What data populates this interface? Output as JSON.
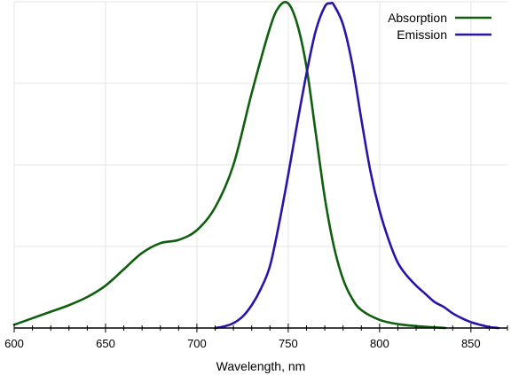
{
  "chart_data": {
    "type": "line",
    "title": "",
    "xlabel": "Wavelength, nm",
    "ylabel": "",
    "xlim": [
      600,
      870
    ],
    "ylim": [
      0,
      1.0
    ],
    "x_ticks": [
      600,
      650,
      700,
      750,
      800,
      850
    ],
    "x_tick_labels": [
      "600",
      "650",
      "700",
      "750",
      "800",
      "850"
    ],
    "y_grid": [
      0.25,
      0.5,
      0.75,
      1.0
    ],
    "grid": true,
    "legend": "top-right",
    "series": [
      {
        "name": "Absorption",
        "color": "#0f5f0f",
        "x": [
          600,
          610,
          620,
          630,
          640,
          650,
          660,
          670,
          680,
          690,
          700,
          710,
          720,
          730,
          740,
          745,
          750,
          755,
          760,
          765,
          770,
          775,
          780,
          785,
          790,
          800,
          810,
          820,
          836
        ],
        "y": [
          0.01,
          0.03,
          0.05,
          0.07,
          0.095,
          0.13,
          0.18,
          0.23,
          0.26,
          0.27,
          0.3,
          0.37,
          0.5,
          0.72,
          0.92,
          0.985,
          0.995,
          0.93,
          0.8,
          0.6,
          0.4,
          0.25,
          0.15,
          0.09,
          0.055,
          0.025,
          0.012,
          0.006,
          0.0
        ]
      },
      {
        "name": "Emission",
        "color": "#2a14a8",
        "x": [
          710,
          715,
          720,
          725,
          730,
          735,
          740,
          745,
          750,
          755,
          760,
          765,
          770,
          773,
          775,
          780,
          785,
          790,
          795,
          800,
          805,
          810,
          815,
          820,
          825,
          830,
          835,
          840,
          845,
          850,
          855,
          860,
          865
        ],
        "y": [
          0.0,
          0.005,
          0.015,
          0.035,
          0.07,
          0.12,
          0.19,
          0.32,
          0.47,
          0.63,
          0.78,
          0.91,
          0.985,
          0.995,
          0.99,
          0.93,
          0.81,
          0.64,
          0.48,
          0.36,
          0.27,
          0.2,
          0.16,
          0.13,
          0.105,
          0.08,
          0.065,
          0.045,
          0.03,
          0.018,
          0.01,
          0.003,
          0.0
        ]
      }
    ]
  }
}
